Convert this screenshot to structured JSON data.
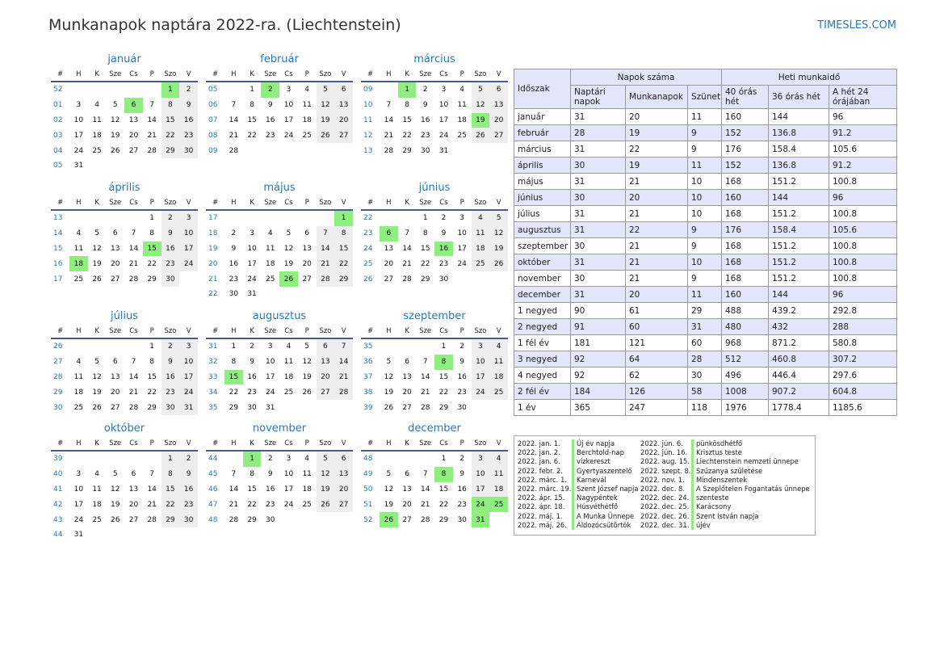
{
  "title": "Munkanapok naptára 2022-ra. (Liechtenstein)",
  "site": "TIMESLES.COM",
  "colors": {
    "accent": "#2a78b8",
    "holiday": "#90ee80",
    "weekend": "#eeeeee",
    "summary_alt": "#e3e6fa"
  },
  "day_headers": [
    "#",
    "H",
    "K",
    "Sze",
    "Cs",
    "P",
    "Szo",
    "V"
  ],
  "months": [
    {
      "name": "január",
      "weeks": [
        [
          "52",
          "",
          "",
          "",
          "",
          "",
          "1",
          "2"
        ],
        [
          "01",
          "3",
          "4",
          "5",
          "6",
          "7",
          "8",
          "9"
        ],
        [
          "02",
          "10",
          "11",
          "12",
          "13",
          "14",
          "15",
          "16"
        ],
        [
          "03",
          "17",
          "18",
          "19",
          "20",
          "21",
          "22",
          "23"
        ],
        [
          "04",
          "24",
          "25",
          "26",
          "27",
          "28",
          "29",
          "30"
        ],
        [
          "05",
          "31",
          "",
          "",
          "",
          "",
          "",
          ""
        ]
      ],
      "holidays": [
        "1",
        "6"
      ]
    },
    {
      "name": "február",
      "weeks": [
        [
          "05",
          "",
          "1",
          "2",
          "3",
          "4",
          "5",
          "6"
        ],
        [
          "06",
          "7",
          "8",
          "9",
          "10",
          "11",
          "12",
          "13"
        ],
        [
          "07",
          "14",
          "15",
          "16",
          "17",
          "18",
          "19",
          "20"
        ],
        [
          "08",
          "21",
          "22",
          "23",
          "24",
          "25",
          "26",
          "27"
        ],
        [
          "09",
          "28",
          "",
          "",
          "",
          "",
          "",
          ""
        ]
      ],
      "holidays": [
        "2"
      ]
    },
    {
      "name": "március",
      "weeks": [
        [
          "09",
          "",
          "1",
          "2",
          "3",
          "4",
          "5",
          "6"
        ],
        [
          "10",
          "7",
          "8",
          "9",
          "10",
          "11",
          "12",
          "13"
        ],
        [
          "11",
          "14",
          "15",
          "16",
          "17",
          "18",
          "19",
          "20"
        ],
        [
          "12",
          "21",
          "22",
          "23",
          "24",
          "25",
          "26",
          "27"
        ],
        [
          "13",
          "28",
          "29",
          "30",
          "31",
          "",
          "",
          ""
        ]
      ],
      "holidays": [
        "1",
        "19"
      ]
    },
    {
      "name": "április",
      "weeks": [
        [
          "13",
          "",
          "",
          "",
          "",
          "1",
          "2",
          "3"
        ],
        [
          "14",
          "4",
          "5",
          "6",
          "7",
          "8",
          "9",
          "10"
        ],
        [
          "15",
          "11",
          "12",
          "13",
          "14",
          "15",
          "16",
          "17"
        ],
        [
          "16",
          "18",
          "19",
          "20",
          "21",
          "22",
          "23",
          "24"
        ],
        [
          "17",
          "25",
          "26",
          "27",
          "28",
          "29",
          "30",
          ""
        ]
      ],
      "holidays": [
        "15",
        "18"
      ]
    },
    {
      "name": "május",
      "weeks": [
        [
          "17",
          "",
          "",
          "",
          "",
          "",
          "",
          "1"
        ],
        [
          "18",
          "2",
          "3",
          "4",
          "5",
          "6",
          "7",
          "8"
        ],
        [
          "19",
          "9",
          "10",
          "11",
          "12",
          "13",
          "14",
          "15"
        ],
        [
          "20",
          "16",
          "17",
          "18",
          "19",
          "20",
          "21",
          "22"
        ],
        [
          "21",
          "23",
          "24",
          "25",
          "26",
          "27",
          "28",
          "29"
        ],
        [
          "22",
          "30",
          "31",
          "",
          "",
          "",
          "",
          ""
        ]
      ],
      "holidays": [
        "1",
        "26"
      ]
    },
    {
      "name": "június",
      "weeks": [
        [
          "22",
          "",
          "",
          "1",
          "2",
          "3",
          "4",
          "5"
        ],
        [
          "23",
          "6",
          "7",
          "8",
          "9",
          "10",
          "11",
          "12"
        ],
        [
          "24",
          "13",
          "14",
          "15",
          "16",
          "17",
          "18",
          "19"
        ],
        [
          "25",
          "20",
          "21",
          "22",
          "23",
          "24",
          "25",
          "26"
        ],
        [
          "26",
          "27",
          "28",
          "29",
          "30",
          "",
          "",
          ""
        ]
      ],
      "holidays": [
        "6",
        "16"
      ]
    },
    {
      "name": "július",
      "weeks": [
        [
          "26",
          "",
          "",
          "",
          "",
          "1",
          "2",
          "3"
        ],
        [
          "27",
          "4",
          "5",
          "6",
          "7",
          "8",
          "9",
          "10"
        ],
        [
          "28",
          "11",
          "12",
          "13",
          "14",
          "15",
          "16",
          "17"
        ],
        [
          "29",
          "18",
          "19",
          "20",
          "21",
          "22",
          "23",
          "24"
        ],
        [
          "30",
          "25",
          "26",
          "27",
          "28",
          "29",
          "30",
          "31"
        ]
      ],
      "holidays": []
    },
    {
      "name": "augusztus",
      "weeks": [
        [
          "31",
          "1",
          "2",
          "3",
          "4",
          "5",
          "6",
          "7"
        ],
        [
          "32",
          "8",
          "9",
          "10",
          "11",
          "12",
          "13",
          "14"
        ],
        [
          "33",
          "15",
          "16",
          "17",
          "18",
          "19",
          "20",
          "21"
        ],
        [
          "34",
          "22",
          "23",
          "24",
          "25",
          "26",
          "27",
          "28"
        ],
        [
          "35",
          "29",
          "30",
          "31",
          "",
          "",
          "",
          ""
        ]
      ],
      "holidays": [
        "15"
      ]
    },
    {
      "name": "szeptember",
      "weeks": [
        [
          "35",
          "",
          "",
          "",
          "1",
          "2",
          "3",
          "4"
        ],
        [
          "36",
          "5",
          "6",
          "7",
          "8",
          "9",
          "10",
          "11"
        ],
        [
          "37",
          "12",
          "13",
          "14",
          "15",
          "16",
          "17",
          "18"
        ],
        [
          "38",
          "19",
          "20",
          "21",
          "22",
          "23",
          "24",
          "25"
        ],
        [
          "39",
          "26",
          "27",
          "28",
          "29",
          "30",
          "",
          ""
        ]
      ],
      "holidays": [
        "8"
      ]
    },
    {
      "name": "október",
      "weeks": [
        [
          "39",
          "",
          "",
          "",
          "",
          "",
          "1",
          "2"
        ],
        [
          "40",
          "3",
          "4",
          "5",
          "6",
          "7",
          "8",
          "9"
        ],
        [
          "41",
          "10",
          "11",
          "12",
          "13",
          "14",
          "15",
          "16"
        ],
        [
          "42",
          "17",
          "18",
          "19",
          "20",
          "21",
          "22",
          "23"
        ],
        [
          "43",
          "24",
          "25",
          "26",
          "27",
          "28",
          "29",
          "30"
        ],
        [
          "44",
          "31",
          "",
          "",
          "",
          "",
          "",
          ""
        ]
      ],
      "holidays": []
    },
    {
      "name": "november",
      "weeks": [
        [
          "44",
          "",
          "1",
          "2",
          "3",
          "4",
          "5",
          "6"
        ],
        [
          "45",
          "7",
          "8",
          "9",
          "10",
          "11",
          "12",
          "13"
        ],
        [
          "46",
          "14",
          "15",
          "16",
          "17",
          "18",
          "19",
          "20"
        ],
        [
          "47",
          "21",
          "22",
          "23",
          "24",
          "25",
          "26",
          "27"
        ],
        [
          "48",
          "28",
          "29",
          "30",
          "",
          "",
          "",
          ""
        ]
      ],
      "holidays": [
        "1"
      ]
    },
    {
      "name": "december",
      "weeks": [
        [
          "48",
          "",
          "",
          "",
          "1",
          "2",
          "3",
          "4"
        ],
        [
          "49",
          "5",
          "6",
          "7",
          "8",
          "9",
          "10",
          "11"
        ],
        [
          "50",
          "12",
          "13",
          "14",
          "15",
          "16",
          "17",
          "18"
        ],
        [
          "51",
          "19",
          "20",
          "21",
          "22",
          "23",
          "24",
          "25"
        ],
        [
          "52",
          "26",
          "27",
          "28",
          "29",
          "30",
          "31",
          ""
        ]
      ],
      "holidays": [
        "8",
        "24",
        "25",
        "26",
        "31"
      ]
    }
  ],
  "summary": {
    "h_period": "Időszak",
    "h_days": "Napok száma",
    "h_weekly": "Heti munkaidő",
    "h_calendar": "Naptári napok",
    "h_work": "Munkanapok",
    "h_off": "Szünet",
    "h_40": "40 órás hét",
    "h_36": "36 órás hét",
    "h_24": "A hét 24 órájában",
    "rows": [
      [
        "január",
        "31",
        "20",
        "11",
        "160",
        "144",
        "96"
      ],
      [
        "február",
        "28",
        "19",
        "9",
        "152",
        "136.8",
        "91.2"
      ],
      [
        "március",
        "31",
        "22",
        "9",
        "176",
        "158.4",
        "105.6"
      ],
      [
        "április",
        "30",
        "19",
        "11",
        "152",
        "136.8",
        "91.2"
      ],
      [
        "május",
        "31",
        "21",
        "10",
        "168",
        "151.2",
        "100.8"
      ],
      [
        "június",
        "30",
        "20",
        "10",
        "160",
        "144",
        "96"
      ],
      [
        "július",
        "31",
        "21",
        "10",
        "168",
        "151.2",
        "100.8"
      ],
      [
        "augusztus",
        "31",
        "22",
        "9",
        "176",
        "158.4",
        "105.6"
      ],
      [
        "szeptember",
        "30",
        "21",
        "9",
        "168",
        "151.2",
        "100.8"
      ],
      [
        "október",
        "31",
        "21",
        "10",
        "168",
        "151.2",
        "100.8"
      ],
      [
        "november",
        "30",
        "21",
        "9",
        "168",
        "151.2",
        "100.8"
      ],
      [
        "december",
        "31",
        "20",
        "11",
        "160",
        "144",
        "96"
      ],
      [
        "1 negyed",
        "90",
        "61",
        "29",
        "488",
        "439.2",
        "292.8"
      ],
      [
        "2 negyed",
        "91",
        "60",
        "31",
        "480",
        "432",
        "288"
      ],
      [
        "1 fél év",
        "181",
        "121",
        "60",
        "968",
        "871.2",
        "580.8"
      ],
      [
        "3 negyed",
        "92",
        "64",
        "28",
        "512",
        "460.8",
        "307.2"
      ],
      [
        "4 negyed",
        "92",
        "62",
        "30",
        "496",
        "446.4",
        "297.6"
      ],
      [
        "2 fél év",
        "184",
        "126",
        "58",
        "1008",
        "907.2",
        "604.8"
      ],
      [
        "1 év",
        "365",
        "247",
        "118",
        "1976",
        "1778.4",
        "1185.6"
      ]
    ]
  },
  "holidays": [
    [
      "2022. jan. 1.",
      "Új év napja",
      "2022. jún. 6.",
      "pünkösdhétfő"
    ],
    [
      "2022. jan. 2.",
      "Berchtold-nap",
      "2022. jún. 16.",
      "Krisztus teste"
    ],
    [
      "2022. jan. 6.",
      "vízkereszt",
      "2022. aug. 15.",
      "Liechtenstein nemzeti ünnepe"
    ],
    [
      "2022. febr. 2.",
      "Gyertyaszentelő",
      "2022. szept. 8.",
      "Szűzanya születése"
    ],
    [
      "2022. márc. 1.",
      "Karnevál",
      "2022. nov. 1.",
      "Mindenszentek"
    ],
    [
      "2022. márc. 19.",
      "Szent József napja",
      "2022. dec. 8.",
      "A Szeplőtelen Fogantatás ünnepe"
    ],
    [
      "2022. ápr. 15.",
      "Nagypéntek",
      "2022. dec. 24.",
      "szenteste"
    ],
    [
      "2022. ápr. 18.",
      "Húsvéthétfő",
      "2022. dec. 25.",
      "Karácsony"
    ],
    [
      "2022. máj. 1.",
      "A Munka Ünnepe",
      "2022. dec. 26.",
      "Szent István napja"
    ],
    [
      "2022. máj. 26.",
      "Áldozócsütörtök",
      "2022. dec. 31.",
      "újév"
    ]
  ]
}
